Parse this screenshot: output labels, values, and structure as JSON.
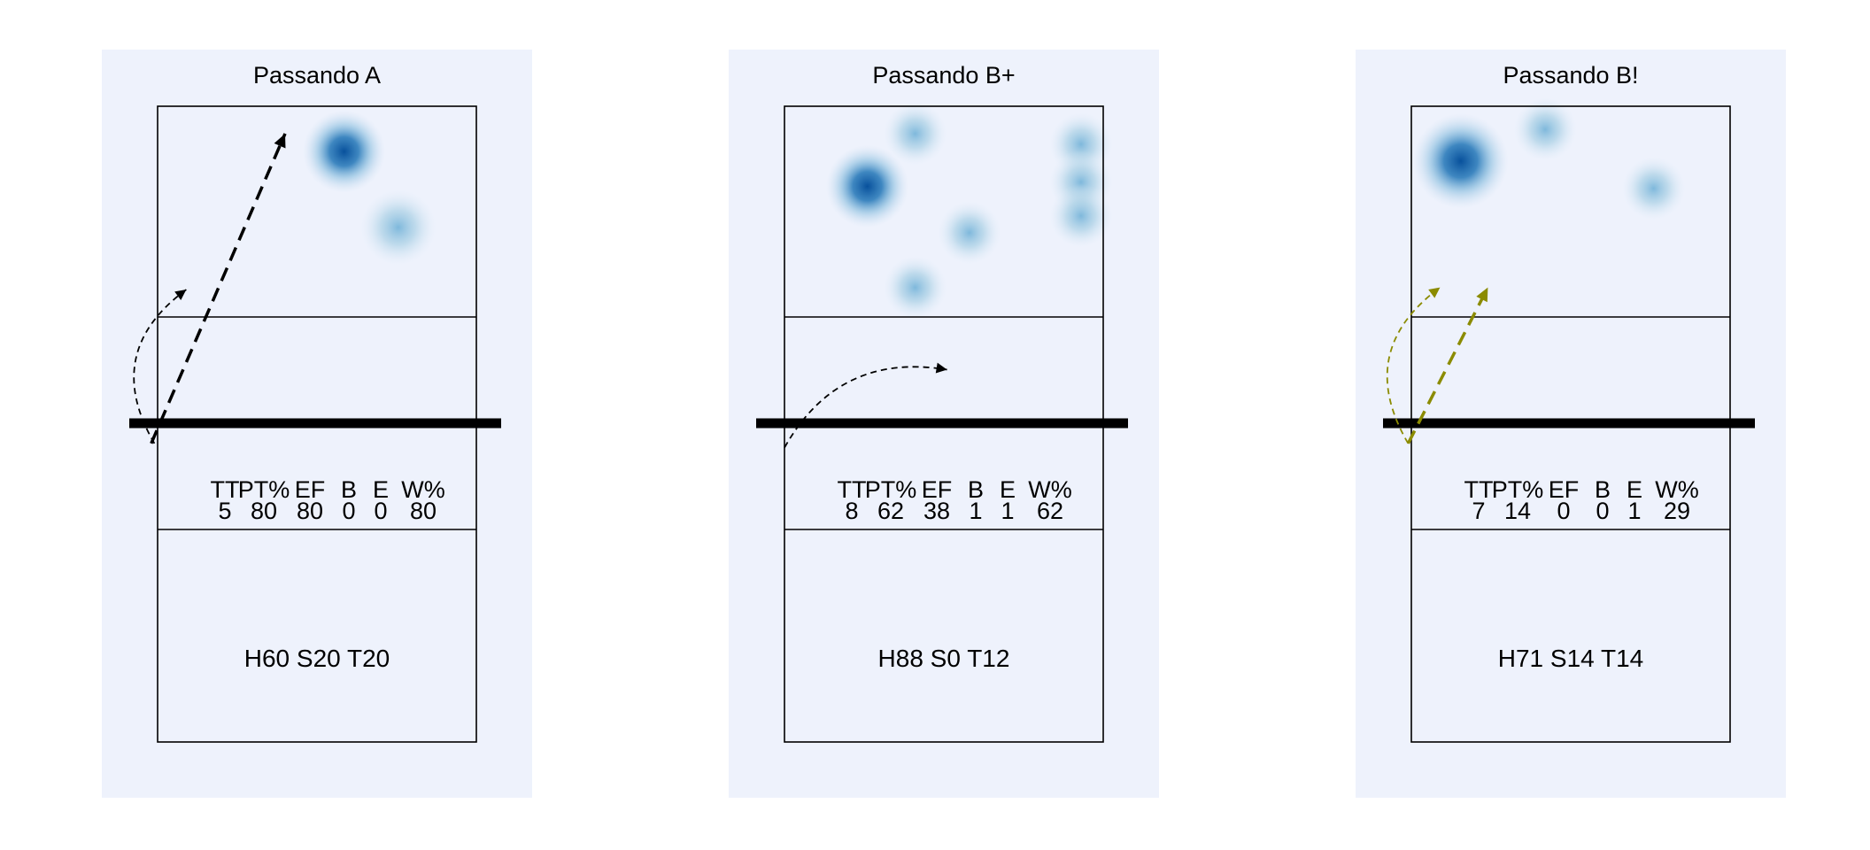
{
  "chart_data": [
    {
      "type": "heatmap",
      "title": "Passando A",
      "stats_headers": [
        "TT",
        "PT%",
        "EF",
        "B",
        "E",
        "W%"
      ],
      "stats_values": [
        "5",
        "80",
        "80",
        "0",
        "0",
        "80"
      ],
      "footer": "H60 S20 T20",
      "heat_spots": [
        {
          "x": 0.585,
          "y": 0.215,
          "r": 0.13,
          "intensity": 1.0
        },
        {
          "x": 0.755,
          "y": 0.575,
          "r": 0.12,
          "intensity": 0.5
        }
      ],
      "arrows": [
        {
          "color": "#000000",
          "dash": "dashed-long",
          "width": 3.5,
          "from": [
            -0.02,
            1.6
          ],
          "to": [
            0.4,
            0.13
          ],
          "curve": 0
        },
        {
          "color": "#000000",
          "dash": "dashed-short",
          "width": 1.8,
          "from": [
            -0.01,
            1.6
          ],
          "to": [
            0.09,
            0.87
          ],
          "curve": 0.45
        }
      ]
    },
    {
      "type": "heatmap",
      "title": "Passando B+",
      "stats_headers": [
        "TT",
        "PT%",
        "EF",
        "B",
        "E",
        "W%"
      ],
      "stats_values": [
        "8",
        "62",
        "38",
        "1",
        "1",
        "62"
      ],
      "footer": "H88 S0 T12",
      "heat_spots": [
        {
          "x": 0.26,
          "y": 0.38,
          "r": 0.13,
          "intensity": 1.0
        },
        {
          "x": 0.41,
          "y": 0.13,
          "r": 0.1,
          "intensity": 0.45
        },
        {
          "x": 0.58,
          "y": 0.6,
          "r": 0.1,
          "intensity": 0.45
        },
        {
          "x": 0.41,
          "y": 0.86,
          "r": 0.1,
          "intensity": 0.45
        },
        {
          "x": 0.93,
          "y": 0.18,
          "r": 0.1,
          "intensity": 0.45
        },
        {
          "x": 0.93,
          "y": 0.36,
          "r": 0.1,
          "intensity": 0.45
        },
        {
          "x": 0.93,
          "y": 0.52,
          "r": 0.1,
          "intensity": 0.4
        }
      ],
      "arrows": [
        {
          "color": "#000000",
          "dash": "dashed-short",
          "width": 1.8,
          "from": [
            0.0,
            1.62
          ],
          "to": [
            0.51,
            1.25
          ],
          "curve": 0.35
        }
      ]
    },
    {
      "type": "heatmap",
      "title": "Passando B!",
      "stats_headers": [
        "TT",
        "PT%",
        "EF",
        "B",
        "E",
        "W%"
      ],
      "stats_values": [
        "7",
        "14",
        "0",
        "0",
        "1",
        "29"
      ],
      "footer": "H71 S14 T14",
      "heat_spots": [
        {
          "x": 0.155,
          "y": 0.26,
          "r": 0.15,
          "intensity": 1.0
        },
        {
          "x": 0.42,
          "y": 0.11,
          "r": 0.1,
          "intensity": 0.45
        },
        {
          "x": 0.76,
          "y": 0.39,
          "r": 0.1,
          "intensity": 0.45
        }
      ],
      "arrows": [
        {
          "color": "#8b8b00",
          "dash": "dashed-long",
          "width": 3.5,
          "from": [
            -0.01,
            1.6
          ],
          "to": [
            0.24,
            0.86
          ],
          "curve": 0
        },
        {
          "color": "#8b8b00",
          "dash": "dashed-short",
          "width": 1.8,
          "from": [
            -0.01,
            1.6
          ],
          "to": [
            0.09,
            0.86
          ],
          "curve": 0.45
        }
      ]
    }
  ]
}
